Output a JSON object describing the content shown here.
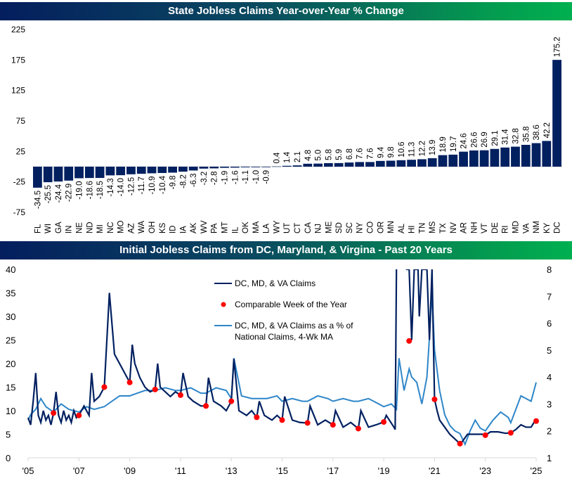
{
  "chart_data": [
    {
      "type": "bar",
      "title": "State Jobless Claims Year-over-Year % Change",
      "xlabel": "",
      "ylabel": "",
      "ylim": [
        -75,
        225
      ],
      "yticks": [
        225,
        175,
        125,
        75,
        25,
        -25,
        -75
      ],
      "categories": [
        "FL",
        "WI",
        "GA",
        "IN",
        "NE",
        "ND",
        "MI",
        "NC",
        "MO",
        "AZ",
        "WA",
        "OH",
        "KS",
        "ID",
        "IA",
        "AK",
        "WV",
        "PA",
        "MT",
        "IL",
        "OK",
        "MA",
        "LA",
        "WY",
        "UT",
        "CT",
        "CA",
        "NJ",
        "ME",
        "SD",
        "SC",
        "NY",
        "CO",
        "OR",
        "MN",
        "AL",
        "HI",
        "TN",
        "MS",
        "TX",
        "NV",
        "AR",
        "NH",
        "VT",
        "DE",
        "RI",
        "MD",
        "VA",
        "NM",
        "KY",
        "DC"
      ],
      "values": [
        -34.5,
        -25.5,
        -24.4,
        -22.9,
        -19.0,
        -18.6,
        -18.5,
        -14.3,
        -14.0,
        -12.5,
        -11.7,
        -10.9,
        -10.4,
        -9.8,
        -8.2,
        -6.3,
        -3.2,
        -2.8,
        -1.9,
        -1.6,
        -1.1,
        -1.0,
        -0.9,
        0.4,
        1.4,
        2.1,
        4.8,
        5.0,
        5.8,
        5.9,
        6.8,
        7.6,
        7.6,
        9.4,
        9.8,
        10.6,
        11.3,
        12.2,
        13.9,
        18.9,
        19.7,
        24.6,
        26.6,
        26.9,
        29.1,
        31.4,
        32.8,
        35.8,
        38.6,
        42.2,
        175.2
      ],
      "labels": [
        "-34.5",
        "-25.5",
        "-24.4",
        "-22.9",
        "-19.0",
        "-18.6",
        "-18.5",
        "-14.3",
        "-14.0",
        "-12.5",
        "-11.7",
        "-10.9",
        "-10.4",
        "-9.8",
        "-8.2",
        "-6.3",
        "-3.2",
        "-2.8",
        "-1.9",
        "-1.6",
        "-1.1",
        "-1.0",
        "-0.9",
        "0.4",
        "1.4",
        "2.1",
        "4.8",
        "5.0",
        "5.8",
        "5.9",
        "6.8",
        "7.6",
        "7.6",
        "9.4",
        "9.8",
        "10.6",
        "11.3",
        "12.2",
        "13.9",
        "18.9",
        "19.7",
        "24.6",
        "26.6",
        "26.9",
        "29.1",
        "31.4",
        "32.8",
        "35.8",
        "38.6",
        "42.2",
        "175.2"
      ],
      "color": "#002060"
    },
    {
      "type": "line",
      "title": "Initial Jobless Claims from DC, Maryland, & Virgina - Past 20 Years",
      "xlim": [
        2005,
        2025
      ],
      "xticks": [
        "'05",
        "'07",
        "'09",
        "'11",
        "'13",
        "'15",
        "'17",
        "'19",
        "'21",
        "'23",
        "'25"
      ],
      "xtick_years": [
        2005,
        2007,
        2009,
        2011,
        2013,
        2015,
        2017,
        2019,
        2021,
        2023,
        2025
      ],
      "ylim_left": [
        0,
        40
      ],
      "yticks_left": [
        "0",
        "5",
        "10",
        "15",
        "20",
        "25",
        "30",
        "35",
        "40"
      ],
      "ylim_right": [
        1,
        8
      ],
      "yticks_right": [
        "1",
        "2",
        "3",
        "4",
        "5",
        "6",
        "7",
        "8"
      ],
      "legend_position": "top-center",
      "series": [
        {
          "name": "DC, MD, &  VA Claims",
          "axis": "left",
          "color": "#002060",
          "x": [
            2005.0,
            2005.1,
            2005.2,
            2005.3,
            2005.4,
            2005.5,
            2005.6,
            2005.7,
            2005.8,
            2005.9,
            2006.0,
            2006.1,
            2006.2,
            2006.3,
            2006.4,
            2006.5,
            2006.6,
            2006.7,
            2006.8,
            2006.9,
            2007.0,
            2007.2,
            2007.4,
            2007.5,
            2007.6,
            2007.8,
            2008.0,
            2008.1,
            2008.2,
            2008.4,
            2008.6,
            2008.8,
            2009.0,
            2009.1,
            2009.2,
            2009.4,
            2009.6,
            2009.8,
            2010.0,
            2010.1,
            2010.2,
            2010.4,
            2010.6,
            2010.8,
            2011.0,
            2011.1,
            2011.3,
            2011.5,
            2011.8,
            2012.0,
            2012.1,
            2012.3,
            2012.6,
            2012.8,
            2013.0,
            2013.1,
            2013.3,
            2013.6,
            2013.8,
            2014.0,
            2014.1,
            2014.3,
            2014.6,
            2014.8,
            2015.0,
            2015.1,
            2015.4,
            2015.7,
            2016.0,
            2016.1,
            2016.4,
            2016.7,
            2017.0,
            2017.1,
            2017.4,
            2017.7,
            2018.0,
            2018.1,
            2018.4,
            2018.7,
            2019.0,
            2019.1,
            2019.4,
            2019.45,
            2019.5,
            2019.7,
            2019.9,
            2020.0,
            2020.1,
            2020.2,
            2020.35,
            2020.4,
            2020.5,
            2020.6,
            2020.7,
            2020.8,
            2020.9,
            2021.0,
            2021.1,
            2021.2,
            2021.4,
            2021.6,
            2021.8,
            2022.0,
            2022.1,
            2022.3,
            2022.6,
            2022.9,
            2023.0,
            2023.2,
            2023.5,
            2023.8,
            2024.0,
            2024.2,
            2024.4,
            2024.6,
            2024.8,
            2024.95,
            2025.0
          ],
          "y": [
            8.5,
            7,
            12,
            18,
            9,
            7.5,
            10,
            8,
            9,
            7,
            9.5,
            14,
            9,
            7.5,
            10,
            8,
            9,
            7.5,
            10,
            8.5,
            9,
            11,
            9,
            18,
            12,
            13,
            15,
            25,
            35,
            22,
            20,
            18,
            16,
            24,
            20,
            17,
            15,
            14,
            14.5,
            20,
            15,
            14,
            13,
            14,
            13.3,
            18,
            13,
            12,
            11,
            11,
            17,
            12,
            11,
            10,
            12,
            21,
            10,
            9,
            10,
            8.6,
            12,
            9,
            8,
            9,
            8,
            13,
            8,
            7.5,
            7.4,
            11,
            7,
            8,
            7,
            10,
            6.5,
            7.5,
            6.2,
            10,
            6.5,
            7,
            7.6,
            9,
            6.5,
            6,
            40,
            42,
            40,
            40,
            25,
            40,
            40,
            30,
            40,
            40,
            40,
            25,
            40,
            12.4,
            10,
            8,
            6.5,
            5,
            4,
            3,
            3.5,
            5,
            5,
            5,
            4.8,
            5.5,
            5.5,
            5.2,
            5.3,
            6,
            7,
            6.5,
            6.5,
            7.8,
            7.8
          ],
          "description": "weekly claims in thousands; truncated off-scale peaks in 2020"
        },
        {
          "name": "Comparable Week of the Year",
          "axis": "left",
          "color": "#ff0000",
          "marker": "dot",
          "x": [
            2006,
            2007,
            2008,
            2009,
            2010,
            2011,
            2012,
            2013,
            2014,
            2015,
            2016,
            2017,
            2018,
            2019,
            2020,
            2021,
            2022,
            2023,
            2024,
            2025
          ],
          "y": [
            9.5,
            9.0,
            15.0,
            16.0,
            14.5,
            13.3,
            11.0,
            12.0,
            8.6,
            8.0,
            7.4,
            7.0,
            6.2,
            7.6,
            24.8,
            12.4,
            3.0,
            4.8,
            5.3,
            7.8
          ]
        },
        {
          "name": "DC, MD, & VA Claims as a % of National Claims, 4-Wk MA",
          "axis": "right",
          "color": "#2e86c9",
          "x": [
            2005.0,
            2005.1,
            2005.3,
            2005.5,
            2005.7,
            2006.0,
            2006.3,
            2006.6,
            2007.0,
            2007.3,
            2007.6,
            2008.0,
            2008.3,
            2008.6,
            2009.0,
            2009.3,
            2009.6,
            2010.0,
            2010.4,
            2010.8,
            2011.0,
            2011.4,
            2011.8,
            2012.0,
            2012.4,
            2012.8,
            2013.0,
            2013.1,
            2013.4,
            2013.8,
            2014.0,
            2014.4,
            2014.8,
            2015.0,
            2015.4,
            2015.8,
            2016.0,
            2016.4,
            2016.8,
            2017.0,
            2017.4,
            2017.8,
            2018.0,
            2018.4,
            2018.8,
            2019.0,
            2019.3,
            2019.5,
            2019.6,
            2019.8,
            2020.0,
            2020.1,
            2020.3,
            2020.5,
            2020.7,
            2020.8,
            2020.9,
            2021.0,
            2021.2,
            2021.4,
            2021.6,
            2021.8,
            2022.0,
            2022.2,
            2022.4,
            2022.6,
            2022.8,
            2023.0,
            2023.3,
            2023.6,
            2023.9,
            2024.0,
            2024.2,
            2024.4,
            2024.6,
            2024.8,
            2025.0
          ],
          "y": [
            2.4,
            2.6,
            2.8,
            3.2,
            2.9,
            2.7,
            3.0,
            2.8,
            2.7,
            2.9,
            2.8,
            2.9,
            3.1,
            3.3,
            3.3,
            3.4,
            3.5,
            3.5,
            3.6,
            3.5,
            3.5,
            3.6,
            3.4,
            3.4,
            3.6,
            3.5,
            3.2,
            4.7,
            3.3,
            3.2,
            3.2,
            3.2,
            3.3,
            3.1,
            3.2,
            3.1,
            3.1,
            3.3,
            3.2,
            3.1,
            3.2,
            3.1,
            3.1,
            3.2,
            3.0,
            2.9,
            3.0,
            2.8,
            4.7,
            3.5,
            4.3,
            4.0,
            3.8,
            3.0,
            4.0,
            5.5,
            7.2,
            5.0,
            3.5,
            2.6,
            2.2,
            2.0,
            1.9,
            1.5,
            2.0,
            2.4,
            2.1,
            2.0,
            2.4,
            2.7,
            2.5,
            2.3,
            2.8,
            3.3,
            3.2,
            3.1,
            3.8
          ]
        }
      ]
    }
  ]
}
